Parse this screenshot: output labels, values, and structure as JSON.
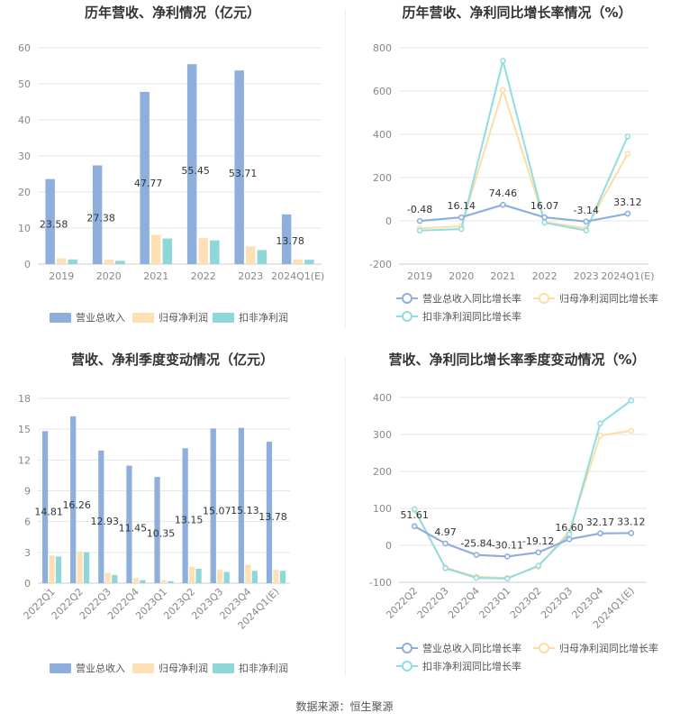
{
  "source": "数据来源：恒生聚源",
  "colors": {
    "revenue": "#8eaedc",
    "parent_profit": "#fde0b3",
    "deducted_profit": "#8ed6d8",
    "revenue_line": "#8eaedc",
    "parent_line": "#fddca6",
    "deducted_line": "#8fdde0",
    "grid": "#e6e6e6",
    "axis_text": "#888888",
    "title_text": "#333333"
  },
  "chart_data": [
    {
      "id": "annual_amount",
      "type": "bar",
      "title": "历年营收、净利情况（亿元）",
      "categories": [
        "2019",
        "2020",
        "2021",
        "2022",
        "2023",
        "2024Q1(E)"
      ],
      "ylim": [
        0,
        60
      ],
      "yticks": [
        0,
        10,
        20,
        30,
        40,
        50,
        60
      ],
      "grid": true,
      "legend": "bottom",
      "series": [
        {
          "name": "营业总收入",
          "values": [
            23.58,
            27.38,
            47.77,
            55.45,
            53.71,
            13.78
          ],
          "labels": [
            "23.58",
            "27.38",
            "47.77",
            "55.45",
            "53.71",
            "13.78"
          ]
        },
        {
          "name": "归母净利润",
          "values": [
            1.6,
            1.2,
            8.1,
            7.2,
            4.9,
            1.3
          ]
        },
        {
          "name": "扣非净利润",
          "values": [
            1.3,
            0.9,
            7.1,
            6.6,
            3.9,
            1.2
          ]
        }
      ]
    },
    {
      "id": "annual_growth",
      "type": "line",
      "title": "历年营收、净利同比增长率情况（%）",
      "categories": [
        "2019",
        "2020",
        "2021",
        "2022",
        "2023",
        "2024Q1(E)"
      ],
      "ylim": [
        -200,
        800
      ],
      "yticks": [
        -200,
        0,
        200,
        400,
        600,
        800
      ],
      "grid": true,
      "legend": "bottom",
      "series": [
        {
          "name": "营业总收入同比增长率",
          "values": [
            -0.48,
            16.14,
            74.46,
            16.07,
            -3.14,
            33.12
          ],
          "labels": [
            "-0.48",
            "16.14",
            "74.46",
            "16.07",
            "-3.14",
            "33.12"
          ]
        },
        {
          "name": "归母净利润同比增长率",
          "values": [
            -35,
            -25,
            605,
            -5,
            -35,
            310
          ]
        },
        {
          "name": "扣非净利润同比增长率",
          "values": [
            -45,
            -38,
            740,
            -8,
            -45,
            390
          ]
        }
      ]
    },
    {
      "id": "quarterly_amount",
      "type": "bar",
      "title": "营收、净利季度变动情况（亿元）",
      "categories": [
        "2022Q1",
        "2022Q2",
        "2022Q3",
        "2022Q4",
        "2023Q1",
        "2023Q2",
        "2023Q3",
        "2023Q4",
        "2024Q1(E)"
      ],
      "ylim": [
        0,
        18
      ],
      "yticks": [
        0,
        3,
        6,
        9,
        12,
        15,
        18
      ],
      "grid": true,
      "legend": "bottom",
      "series": [
        {
          "name": "营业总收入",
          "values": [
            14.81,
            16.26,
            12.93,
            11.45,
            10.35,
            13.15,
            15.07,
            15.13,
            13.78
          ],
          "labels": [
            "14.81",
            "16.26",
            "12.93",
            "11.45",
            "10.35",
            "13.15",
            "15.07",
            "15.13",
            "13.78"
          ]
        },
        {
          "name": "归母净利润",
          "values": [
            2.7,
            3.1,
            1.0,
            0.5,
            0.3,
            1.6,
            1.3,
            1.8,
            1.3
          ]
        },
        {
          "name": "扣非净利润",
          "values": [
            2.6,
            3.0,
            0.8,
            0.3,
            0.2,
            1.4,
            1.1,
            1.2,
            1.2
          ]
        }
      ]
    },
    {
      "id": "quarterly_growth",
      "type": "line",
      "title": "营收、净利同比增长率季度变动情况（%）",
      "categories": [
        "2022Q2",
        "2022Q3",
        "2022Q4",
        "2023Q1",
        "2023Q2",
        "2023Q3",
        "2023Q4",
        "2024Q1(E)"
      ],
      "ylim": [
        -100,
        400
      ],
      "yticks": [
        -100,
        0,
        100,
        200,
        300,
        400
      ],
      "grid": true,
      "legend": "bottom",
      "series": [
        {
          "name": "营业总收入同比增长率",
          "values": [
            51.61,
            4.97,
            -25.84,
            -30.11,
            -19.12,
            16.6,
            32.17,
            33.12
          ],
          "labels": [
            "51.61",
            "4.97",
            "-25.84",
            "-30.11",
            "-19.12",
            "16.60",
            "32.17",
            "33.12"
          ]
        },
        {
          "name": "归母净利润同比增长率",
          "values": [
            95,
            -60,
            -85,
            -88,
            -58,
            38,
            297,
            310
          ]
        },
        {
          "name": "扣非净利润同比增长率",
          "values": [
            98,
            -62,
            -88,
            -90,
            -55,
            30,
            330,
            392
          ]
        }
      ]
    }
  ]
}
